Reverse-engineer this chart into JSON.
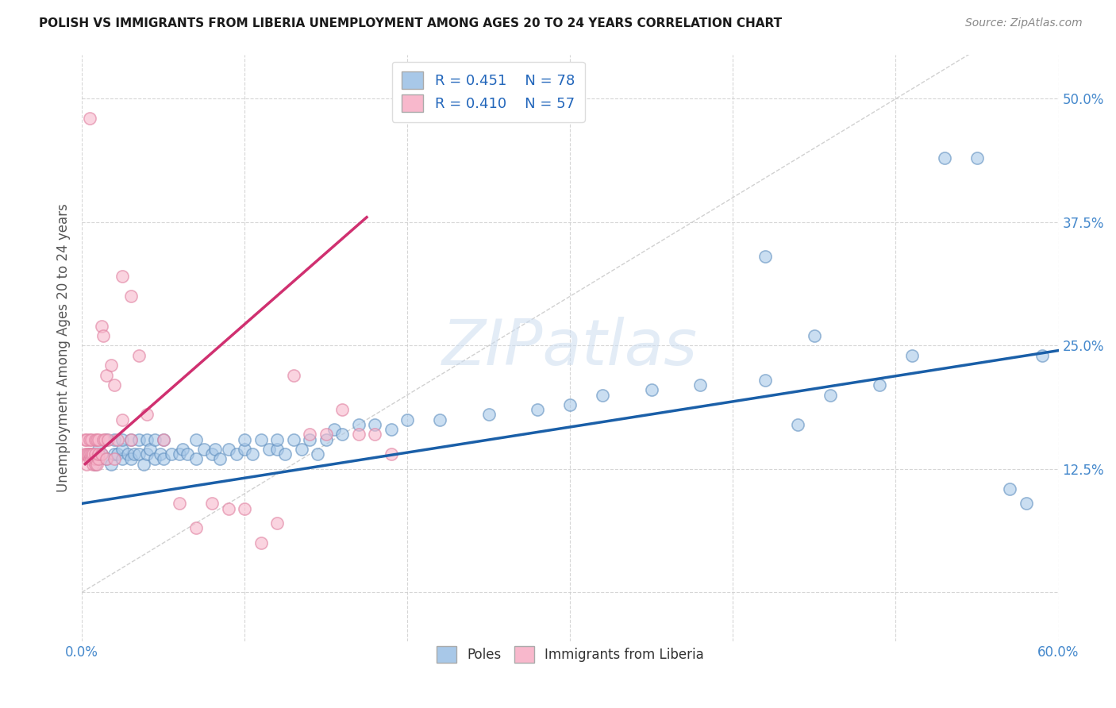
{
  "title": "POLISH VS IMMIGRANTS FROM LIBERIA UNEMPLOYMENT AMONG AGES 20 TO 24 YEARS CORRELATION CHART",
  "source": "Source: ZipAtlas.com",
  "ylabel": "Unemployment Among Ages 20 to 24 years",
  "xlim": [
    0.0,
    0.6
  ],
  "ylim": [
    -0.05,
    0.545
  ],
  "xticks": [
    0.0,
    0.1,
    0.2,
    0.3,
    0.4,
    0.5,
    0.6
  ],
  "xticklabels": [
    "0.0%",
    "",
    "",
    "",
    "",
    "",
    "60.0%"
  ],
  "yticks": [
    0.0,
    0.125,
    0.25,
    0.375,
    0.5
  ],
  "yticklabels": [
    "",
    "12.5%",
    "25.0%",
    "37.5%",
    "50.0%"
  ],
  "blue_R": "0.451",
  "blue_N": "78",
  "pink_R": "0.410",
  "pink_N": "57",
  "blue_color": "#a8c8e8",
  "pink_color": "#f8b8cc",
  "blue_edge_color": "#6090c0",
  "pink_edge_color": "#e080a0",
  "blue_line_color": "#1a5fa8",
  "pink_line_color": "#d03070",
  "grid_color": "#cccccc",
  "watermark": "ZIPatlas",
  "blue_scatter_x": [
    0.005,
    0.008,
    0.01,
    0.012,
    0.015,
    0.015,
    0.018,
    0.02,
    0.02,
    0.022,
    0.025,
    0.025,
    0.025,
    0.028,
    0.03,
    0.03,
    0.032,
    0.035,
    0.035,
    0.038,
    0.04,
    0.04,
    0.042,
    0.045,
    0.045,
    0.048,
    0.05,
    0.05,
    0.055,
    0.06,
    0.062,
    0.065,
    0.07,
    0.07,
    0.075,
    0.08,
    0.082,
    0.085,
    0.09,
    0.095,
    0.1,
    0.1,
    0.105,
    0.11,
    0.115,
    0.12,
    0.12,
    0.125,
    0.13,
    0.135,
    0.14,
    0.145,
    0.15,
    0.155,
    0.16,
    0.17,
    0.18,
    0.19,
    0.2,
    0.22,
    0.25,
    0.28,
    0.3,
    0.32,
    0.35,
    0.38,
    0.42,
    0.44,
    0.46,
    0.49,
    0.51,
    0.53,
    0.55,
    0.57,
    0.58,
    0.59,
    0.42,
    0.45
  ],
  "blue_scatter_y": [
    0.14,
    0.13,
    0.145,
    0.14,
    0.135,
    0.155,
    0.13,
    0.14,
    0.155,
    0.14,
    0.135,
    0.145,
    0.155,
    0.14,
    0.135,
    0.155,
    0.14,
    0.14,
    0.155,
    0.13,
    0.14,
    0.155,
    0.145,
    0.135,
    0.155,
    0.14,
    0.135,
    0.155,
    0.14,
    0.14,
    0.145,
    0.14,
    0.135,
    0.155,
    0.145,
    0.14,
    0.145,
    0.135,
    0.145,
    0.14,
    0.145,
    0.155,
    0.14,
    0.155,
    0.145,
    0.145,
    0.155,
    0.14,
    0.155,
    0.145,
    0.155,
    0.14,
    0.155,
    0.165,
    0.16,
    0.17,
    0.17,
    0.165,
    0.175,
    0.175,
    0.18,
    0.185,
    0.19,
    0.2,
    0.205,
    0.21,
    0.215,
    0.17,
    0.2,
    0.21,
    0.24,
    0.44,
    0.44,
    0.105,
    0.09,
    0.24,
    0.34,
    0.26
  ],
  "pink_scatter_x": [
    0.002,
    0.002,
    0.003,
    0.003,
    0.003,
    0.004,
    0.005,
    0.005,
    0.005,
    0.005,
    0.006,
    0.006,
    0.006,
    0.007,
    0.007,
    0.008,
    0.008,
    0.008,
    0.008,
    0.009,
    0.009,
    0.01,
    0.01,
    0.01,
    0.012,
    0.012,
    0.013,
    0.013,
    0.014,
    0.015,
    0.015,
    0.016,
    0.018,
    0.02,
    0.02,
    0.022,
    0.025,
    0.025,
    0.03,
    0.03,
    0.035,
    0.04,
    0.05,
    0.06,
    0.07,
    0.08,
    0.09,
    0.1,
    0.11,
    0.12,
    0.13,
    0.14,
    0.15,
    0.16,
    0.17,
    0.18,
    0.19
  ],
  "pink_scatter_y": [
    0.14,
    0.155,
    0.13,
    0.14,
    0.155,
    0.14,
    0.135,
    0.14,
    0.155,
    0.48,
    0.135,
    0.14,
    0.155,
    0.13,
    0.14,
    0.13,
    0.135,
    0.14,
    0.155,
    0.13,
    0.155,
    0.135,
    0.14,
    0.155,
    0.14,
    0.27,
    0.155,
    0.26,
    0.155,
    0.135,
    0.22,
    0.155,
    0.23,
    0.135,
    0.21,
    0.155,
    0.175,
    0.32,
    0.155,
    0.3,
    0.24,
    0.18,
    0.155,
    0.09,
    0.065,
    0.09,
    0.085,
    0.085,
    0.05,
    0.07,
    0.22,
    0.16,
    0.16,
    0.185,
    0.16,
    0.16,
    0.14
  ],
  "blue_line_x": [
    0.0,
    0.6
  ],
  "blue_line_y": [
    0.09,
    0.245
  ],
  "pink_line_x": [
    0.002,
    0.175
  ],
  "pink_line_y": [
    0.13,
    0.38
  ],
  "diag_line_x": [
    0.0,
    0.545
  ],
  "diag_line_y": [
    0.0,
    0.545
  ]
}
